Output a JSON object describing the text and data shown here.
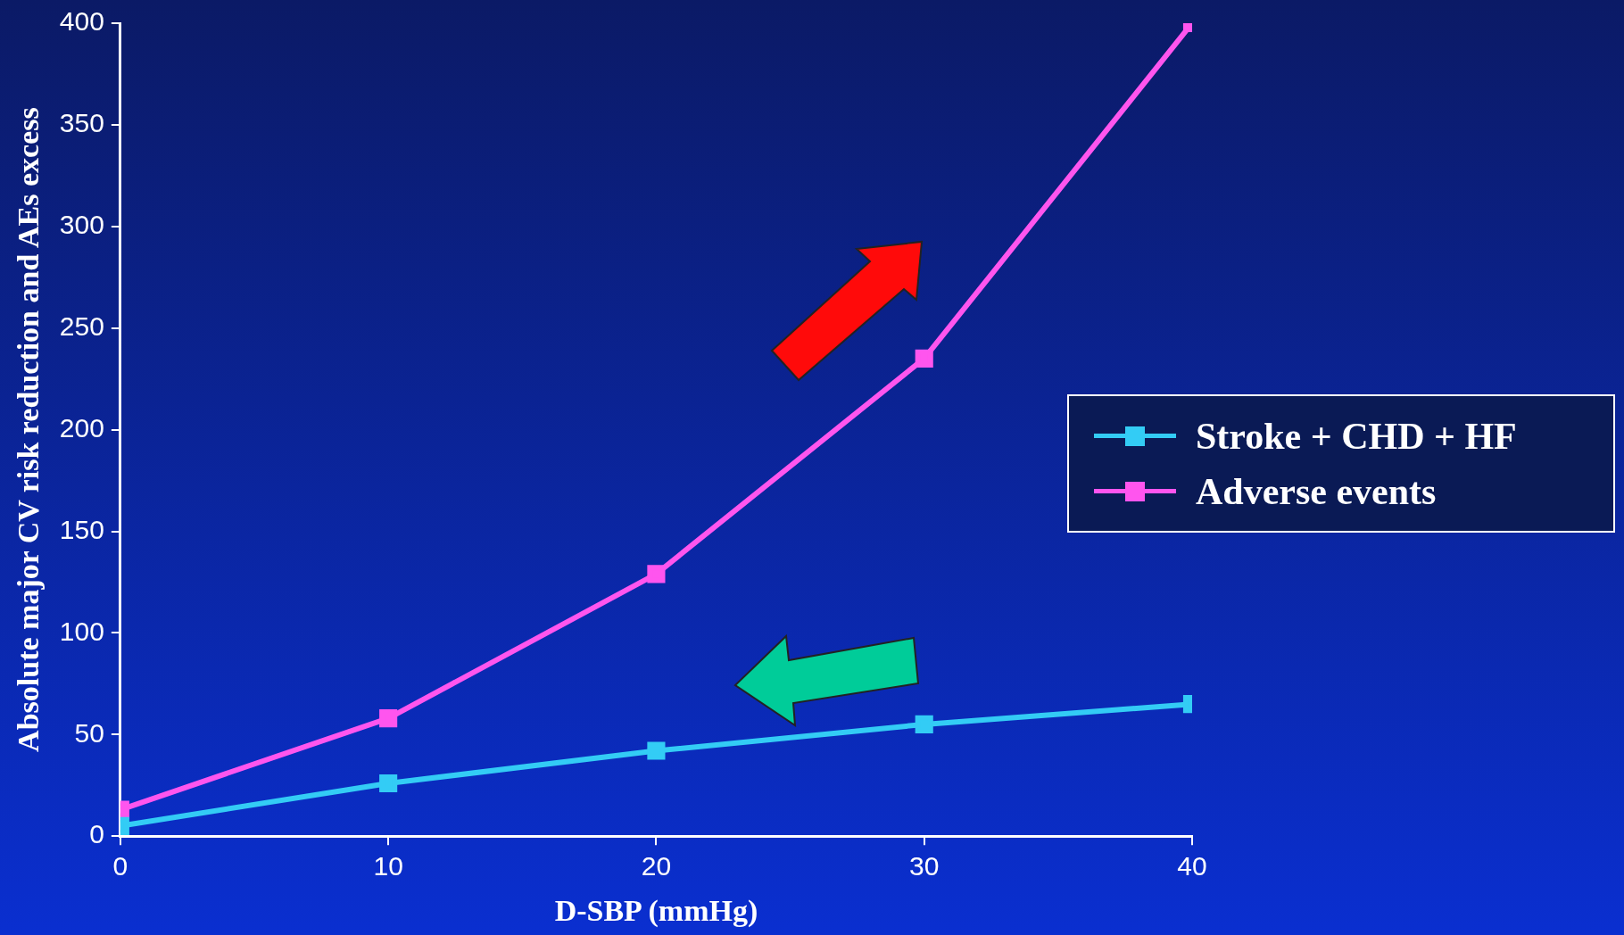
{
  "chart_data": {
    "type": "line",
    "xlabel": "D-SBP (mmHg)",
    "ylabel": "Absolute major CV risk reduction and AEs excess",
    "x": [
      0,
      10,
      20,
      30,
      40
    ],
    "series": [
      {
        "name": "Stroke + CHD + HF",
        "color": "#33ccf5",
        "values": [
          5,
          26,
          42,
          55,
          65
        ]
      },
      {
        "name": "Adverse events",
        "color": "#ff55ee",
        "values": [
          13,
          58,
          129,
          235,
          400
        ]
      }
    ],
    "xlim": [
      0,
      40
    ],
    "xticks": [
      0,
      10,
      20,
      30,
      40
    ],
    "ylim": [
      0,
      400
    ],
    "yticks": [
      0,
      50,
      100,
      150,
      200,
      250,
      300,
      350,
      400
    ],
    "grid": false,
    "legend": "right",
    "marker": "square",
    "line_style": "solid"
  }
}
